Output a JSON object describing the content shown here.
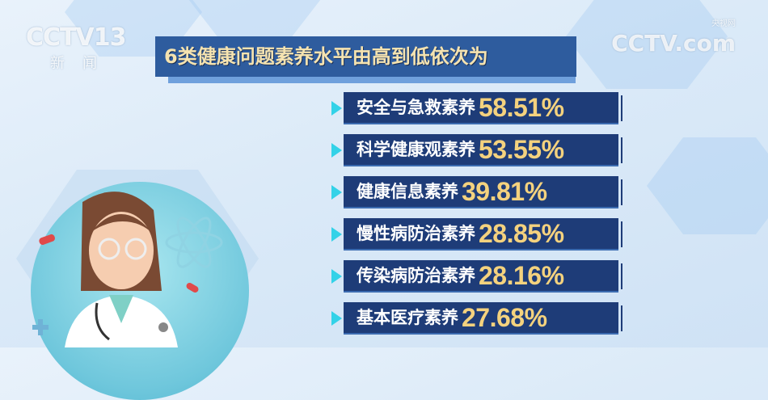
{
  "channel_logo": {
    "text": "CCTV13",
    "sub": "新闻"
  },
  "watermark": {
    "text": "CCTV.com",
    "sub": "央视网"
  },
  "title": "6类健康问题素养水平由高到低依次为",
  "items": [
    {
      "label": "安全与急救素养",
      "value": "58.51%"
    },
    {
      "label": "科学健康观素养",
      "value": "53.55%"
    },
    {
      "label": "健康信息素养",
      "value": "39.81%"
    },
    {
      "label": "慢性病防治素养",
      "value": "28.85%"
    },
    {
      "label": "传染病防治素养",
      "value": "28.16%"
    },
    {
      "label": "基本医疗素养",
      "value": "27.68%"
    }
  ],
  "colors": {
    "title_bg": "#2e5c9e",
    "bar_bg": "#1e3c78",
    "value": "#f4d27e",
    "marker": "#33d2e8"
  }
}
